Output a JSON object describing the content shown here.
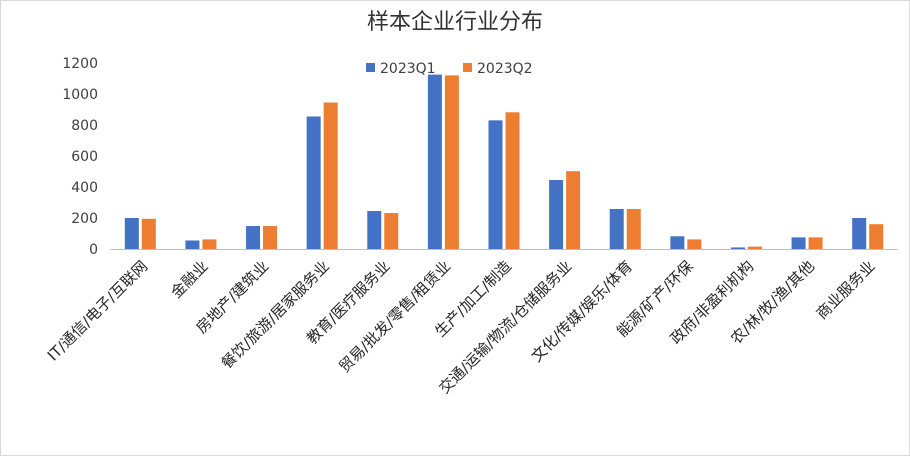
{
  "chart_data": {
    "type": "bar",
    "title": "样本企业行业分布",
    "xlabel": "",
    "ylabel": "",
    "ylim": [
      0,
      1200
    ],
    "yticks": [
      "0",
      "200",
      "400",
      "600",
      "800",
      "1000",
      "1200"
    ],
    "grid": false,
    "legend_position": "top",
    "categories": [
      "IT/通信/电子/互联网",
      "金融业",
      "房地产/建筑业",
      "餐饮/旅游/居家服务业",
      "教育/医疗服务业",
      "贸易/批发/零售/租赁业",
      "生产/加工/制造",
      "交通/运输/物流/仓储服务业",
      "文化/传媒/娱乐/体育",
      "能源/矿产/环保",
      "政府/非盈利机构",
      "农/林/牧/渔/其他",
      "商业服务业"
    ],
    "series": [
      {
        "name": "2023Q1",
        "color": "#4472C4",
        "values": [
          200,
          55,
          148,
          855,
          245,
          1125,
          830,
          445,
          258,
          82,
          10,
          75,
          200
        ]
      },
      {
        "name": "2023Q2",
        "color": "#ED7D31",
        "values": [
          195,
          62,
          148,
          945,
          232,
          1120,
          882,
          502,
          258,
          62,
          15,
          75,
          160
        ]
      }
    ]
  }
}
